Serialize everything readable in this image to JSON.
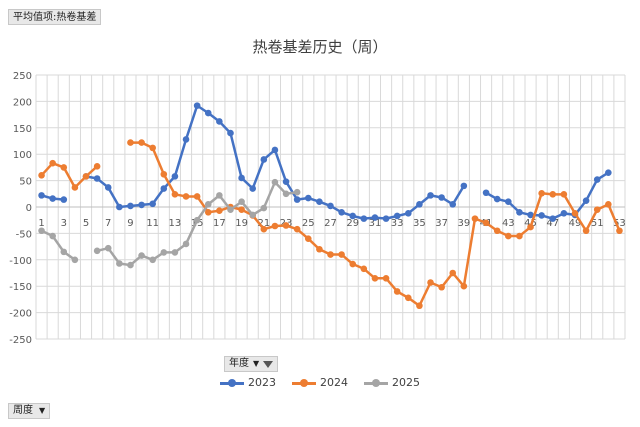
{
  "pivot": {
    "value_button": "平均值项:热卷基差",
    "legend_field": "年度",
    "axis_field": "周度"
  },
  "chart_data": {
    "type": "line",
    "title": "热卷基差历史（周）",
    "ylim": [
      -250,
      250
    ],
    "y_ticks": [
      250,
      200,
      150,
      100,
      50,
      0,
      -50,
      -100,
      -150,
      -200,
      -250
    ],
    "x": [
      1,
      2,
      3,
      4,
      5,
      6,
      7,
      8,
      9,
      10,
      11,
      12,
      13,
      14,
      15,
      16,
      17,
      18,
      19,
      20,
      21,
      22,
      23,
      24,
      25,
      26,
      27,
      28,
      29,
      30,
      31,
      32,
      33,
      34,
      35,
      36,
      37,
      38,
      39,
      40,
      41,
      42,
      43,
      44,
      45,
      46,
      47,
      48,
      49,
      50,
      51,
      52,
      53
    ],
    "x_tick_labels": [
      "1",
      "3",
      "5",
      "7",
      "9",
      "11",
      "13",
      "15",
      "17",
      "19",
      "21",
      "23",
      "25",
      "27",
      "29",
      "31",
      "33",
      "35",
      "37",
      "39",
      "41",
      "43",
      "45",
      "47",
      "49",
      "51",
      "53"
    ],
    "grid": true,
    "legend_position": "bottom",
    "series": [
      {
        "name": "2023",
        "color": "#4472c4",
        "values": [
          22,
          16,
          14,
          null,
          58,
          54,
          37,
          0,
          2,
          4,
          6,
          35,
          58,
          128,
          192,
          178,
          162,
          140,
          55,
          35,
          90,
          108,
          48,
          14,
          17,
          10,
          2,
          -10,
          -17,
          -22,
          -20,
          -22,
          -17,
          -12,
          5,
          22,
          18,
          5,
          40,
          null,
          27,
          15,
          10,
          -10,
          -15,
          -16,
          -22,
          -12,
          -15,
          12,
          52,
          65,
          null
        ]
      },
      {
        "name": "2024",
        "color": "#ed7d31",
        "values": [
          60,
          83,
          75,
          37,
          58,
          77,
          null,
          null,
          122,
          122,
          112,
          62,
          24,
          20,
          20,
          -10,
          -7,
          0,
          -5,
          -16,
          -42,
          -36,
          -35,
          -42,
          -60,
          -80,
          -90,
          -90,
          -108,
          -117,
          -135,
          -135,
          -160,
          -172,
          -187,
          -143,
          -152,
          -125,
          -150,
          -22,
          -30,
          -45,
          -55,
          -55,
          -38,
          26,
          24,
          24,
          -12,
          -45,
          -5,
          5,
          -45
        ]
      },
      {
        "name": "2025",
        "color": "#a5a5a5",
        "values": [
          -45,
          -55,
          -85,
          -100,
          null,
          -83,
          -78,
          -107,
          -110,
          -92,
          -100,
          -86,
          -86,
          -70,
          -25,
          5,
          22,
          -5,
          10,
          -15,
          -2,
          47,
          25,
          28,
          null,
          null,
          null,
          null,
          null,
          null,
          null,
          null,
          null,
          null,
          null,
          null,
          null,
          null,
          null,
          null,
          null,
          null,
          null,
          null,
          null,
          null,
          null,
          null,
          null,
          null,
          null,
          null,
          null
        ]
      }
    ]
  }
}
